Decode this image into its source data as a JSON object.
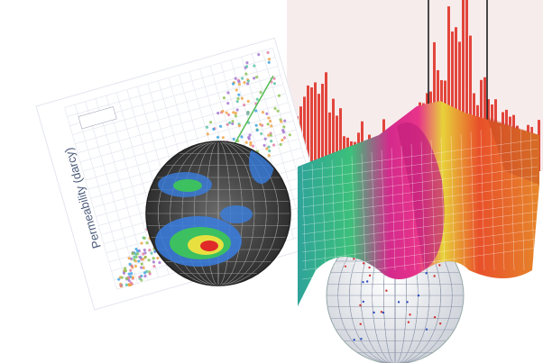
{
  "scatter_plot": {
    "axis_label": "Permeability (darcy)"
  }
}
